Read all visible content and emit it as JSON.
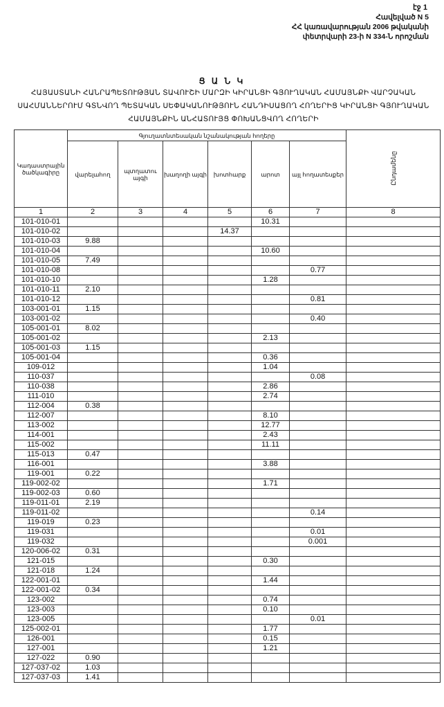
{
  "page_label": "էջ 1",
  "annex": [
    "Հավելված N 5",
    "ՀՀ կառավարության 2006 թվականի",
    "փետրվարի 23-ի N 334-Ն որոշման"
  ],
  "list_title": "Ց Ա Ն Կ",
  "document_title": "ՀԱՅԱՍՏԱՆԻ ՀԱՆՐԱՊԵՏՈՒԹՅԱՆ ՏԱՎՈՒՇԻ ՄԱՐԶԻ ԿԻՐԱՆՑԻ ԳՅՈՒՂԱԿԱՆ ՀԱՄԱՅՆՔԻ ՎԱՐՉԱԿԱՆ ՍԱՀՄԱՆՆԵՐՈՒՄ ԳՏՆՎՈՂ ՊԵՏԱԿԱՆ ՍԵՓԱԿԱՆՈՒԹՅՈՒՆ ՀԱՆԴԻՍԱՑՈՂ ՀՈՂԵՐԻՑ ԿԻՐԱՆՑԻ ԳՅՈՒՂԱԿԱՆ ՀԱՄԱՅՆՔԻՆ ԱՆՀԱՏՈՒՅՑ ՓՈԽԱՆՑՎՈՂ ՀՈՂԵՐԻ",
  "table": {
    "group_header": "Գյուղատնտեսական նշանակության հողերը",
    "headers": [
      "Կադաստրային ծածկագիրը",
      "վարելահող",
      "պտղատու այգի",
      "խաղողի այգի",
      "խոտհարք",
      "արոտ",
      "այլ հողատեսքեր",
      "Ընդամենը"
    ],
    "column_numbers": [
      "1",
      "2",
      "3",
      "4",
      "5",
      "6",
      "7",
      "8"
    ],
    "rows": [
      [
        "101-010-01",
        "",
        "",
        "",
        "",
        "10.31",
        "",
        ""
      ],
      [
        "101-010-02",
        "",
        "",
        "",
        "14.37",
        "",
        "",
        ""
      ],
      [
        "101-010-03",
        "9.88",
        "",
        "",
        "",
        "",
        "",
        ""
      ],
      [
        "101-010-04",
        "",
        "",
        "",
        "",
        "10.60",
        "",
        ""
      ],
      [
        "101-010-05",
        "7.49",
        "",
        "",
        "",
        "",
        "",
        ""
      ],
      [
        "101-010-08",
        "",
        "",
        "",
        "",
        "",
        "0.77",
        ""
      ],
      [
        "101-010-10",
        "",
        "",
        "",
        "",
        "1.28",
        "",
        ""
      ],
      [
        "101-010-11",
        "2.10",
        "",
        "",
        "",
        "",
        "",
        ""
      ],
      [
        "101-010-12",
        "",
        "",
        "",
        "",
        "",
        "0.81",
        ""
      ],
      [
        "103-001-01",
        "1.15",
        "",
        "",
        "",
        "",
        "",
        ""
      ],
      [
        "103-001-02",
        "",
        "",
        "",
        "",
        "",
        "0.40",
        ""
      ],
      [
        "105-001-01",
        "8.02",
        "",
        "",
        "",
        "",
        "",
        ""
      ],
      [
        "105-001-02",
        "",
        "",
        "",
        "",
        "2.13",
        "",
        ""
      ],
      [
        "105-001-03",
        "1.15",
        "",
        "",
        "",
        "",
        "",
        ""
      ],
      [
        "105-001-04",
        "",
        "",
        "",
        "",
        "0.36",
        "",
        ""
      ],
      [
        "109-012",
        "",
        "",
        "",
        "",
        "1.04",
        "",
        ""
      ],
      [
        "110-037",
        "",
        "",
        "",
        "",
        "",
        "0.08",
        ""
      ],
      [
        "110-038",
        "",
        "",
        "",
        "",
        "2.86",
        "",
        ""
      ],
      [
        "111-010",
        "",
        "",
        "",
        "",
        "2.74",
        "",
        ""
      ],
      [
        "112-004",
        "0.38",
        "",
        "",
        "",
        "",
        "",
        ""
      ],
      [
        "112-007",
        "",
        "",
        "",
        "",
        "8.10",
        "",
        ""
      ],
      [
        "113-002",
        "",
        "",
        "",
        "",
        "12.77",
        "",
        ""
      ],
      [
        "114-001",
        "",
        "",
        "",
        "",
        "2.43",
        "",
        ""
      ],
      [
        "115-002",
        "",
        "",
        "",
        "",
        "11.11",
        "",
        ""
      ],
      [
        "115-013",
        "0.47",
        "",
        "",
        "",
        "",
        "",
        ""
      ],
      [
        "116-001",
        "",
        "",
        "",
        "",
        "3.88",
        "",
        ""
      ],
      [
        "119-001",
        "0.22",
        "",
        "",
        "",
        "",
        "",
        ""
      ],
      [
        "119-002-02",
        "",
        "",
        "",
        "",
        "1.71",
        "",
        ""
      ],
      [
        "119-002-03",
        "0.60",
        "",
        "",
        "",
        "",
        "",
        ""
      ],
      [
        "119-011-01",
        "2.19",
        "",
        "",
        "",
        "",
        "",
        ""
      ],
      [
        "119-011-02",
        "",
        "",
        "",
        "",
        "",
        "0.14",
        ""
      ],
      [
        "119-019",
        "0.23",
        "",
        "",
        "",
        "",
        "",
        ""
      ],
      [
        "119-031",
        "",
        "",
        "",
        "",
        "",
        "0.01",
        ""
      ],
      [
        "119-032",
        "",
        "",
        "",
        "",
        "",
        "0.001",
        ""
      ],
      [
        "120-006-02",
        "0.31",
        "",
        "",
        "",
        "",
        "",
        ""
      ],
      [
        "121-015",
        "",
        "",
        "",
        "",
        "0.30",
        "",
        ""
      ],
      [
        "121-018",
        "1.24",
        "",
        "",
        "",
        "",
        "",
        ""
      ],
      [
        "122-001-01",
        "",
        "",
        "",
        "",
        "1.44",
        "",
        ""
      ],
      [
        "122-001-02",
        "0.34",
        "",
        "",
        "",
        "",
        "",
        ""
      ],
      [
        "123-002",
        "",
        "",
        "",
        "",
        "0.74",
        "",
        ""
      ],
      [
        "123-003",
        "",
        "",
        "",
        "",
        "0.10",
        "",
        ""
      ],
      [
        "123-005",
        "",
        "",
        "",
        "",
        "",
        "0.01",
        ""
      ],
      [
        "125-002-01",
        "",
        "",
        "",
        "",
        "1.77",
        "",
        ""
      ],
      [
        "126-001",
        "",
        "",
        "",
        "",
        "0.15",
        "",
        ""
      ],
      [
        "127-001",
        "",
        "",
        "",
        "",
        "1.21",
        "",
        ""
      ],
      [
        "127-022",
        "0.90",
        "",
        "",
        "",
        "",
        "",
        ""
      ],
      [
        "127-037-02",
        "1.03",
        "",
        "",
        "",
        "",
        "",
        ""
      ],
      [
        "127-037-03",
        "1.41",
        "",
        "",
        "",
        "",
        "",
        ""
      ]
    ]
  }
}
